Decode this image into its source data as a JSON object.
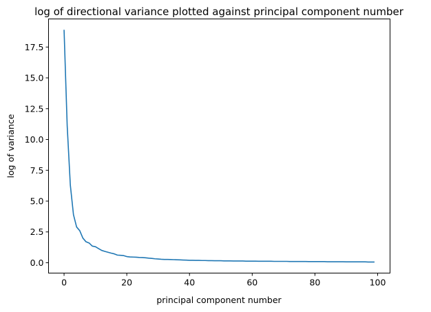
{
  "chart_data": {
    "type": "line",
    "title": "log of directional variance plotted against principal component number",
    "xlabel": "principal component number",
    "ylabel": "log of variance",
    "xlim": [
      -4.95,
      103.95
    ],
    "ylim": [
      -0.84,
      19.78
    ],
    "grid": false,
    "xticks": [
      0,
      20,
      40,
      60,
      80,
      100
    ],
    "xtick_labels": [
      "0",
      "20",
      "40",
      "60",
      "80",
      "100"
    ],
    "yticks": [
      0.0,
      2.5,
      5.0,
      7.5,
      10.0,
      12.5,
      15.0,
      17.5
    ],
    "ytick_labels": [
      "0.0",
      "2.5",
      "5.0",
      "7.5",
      "10.0",
      "12.5",
      "15.0",
      "17.5"
    ],
    "series": [
      {
        "color": "#1f77b4",
        "x": [
          0,
          1,
          2,
          3,
          4,
          5,
          6,
          7,
          8,
          9,
          10,
          11,
          12,
          13,
          14,
          15,
          16,
          17,
          18,
          19,
          20,
          21,
          22,
          23,
          24,
          25,
          26,
          27,
          28,
          29,
          30,
          31,
          32,
          33,
          34,
          35,
          36,
          37,
          38,
          39,
          40,
          41,
          42,
          43,
          44,
          45,
          46,
          47,
          48,
          49,
          50,
          51,
          52,
          53,
          54,
          55,
          56,
          57,
          58,
          59,
          60,
          61,
          62,
          63,
          64,
          65,
          66,
          67,
          68,
          69,
          70,
          71,
          72,
          73,
          74,
          75,
          76,
          77,
          78,
          79,
          80,
          81,
          82,
          83,
          84,
          85,
          86,
          87,
          88,
          89,
          90,
          91,
          92,
          93,
          94,
          95,
          96,
          97,
          98,
          99
        ],
        "values": [
          18.9,
          11.1,
          6.3,
          3.9,
          2.9,
          2.6,
          2.0,
          1.7,
          1.6,
          1.35,
          1.3,
          1.15,
          1.0,
          0.92,
          0.85,
          0.78,
          0.72,
          0.62,
          0.6,
          0.58,
          0.5,
          0.47,
          0.46,
          0.45,
          0.43,
          0.42,
          0.4,
          0.37,
          0.35,
          0.32,
          0.3,
          0.28,
          0.27,
          0.27,
          0.26,
          0.25,
          0.24,
          0.23,
          0.22,
          0.21,
          0.2,
          0.2,
          0.19,
          0.19,
          0.18,
          0.18,
          0.17,
          0.17,
          0.16,
          0.16,
          0.16,
          0.15,
          0.15,
          0.15,
          0.14,
          0.14,
          0.14,
          0.14,
          0.13,
          0.13,
          0.13,
          0.13,
          0.12,
          0.12,
          0.12,
          0.12,
          0.12,
          0.11,
          0.11,
          0.11,
          0.11,
          0.11,
          0.1,
          0.1,
          0.1,
          0.1,
          0.1,
          0.1,
          0.09,
          0.09,
          0.09,
          0.09,
          0.09,
          0.09,
          0.08,
          0.08,
          0.08,
          0.08,
          0.08,
          0.08,
          0.07,
          0.07,
          0.07,
          0.07,
          0.07,
          0.07,
          0.07,
          0.06,
          0.06,
          0.06
        ]
      }
    ]
  }
}
